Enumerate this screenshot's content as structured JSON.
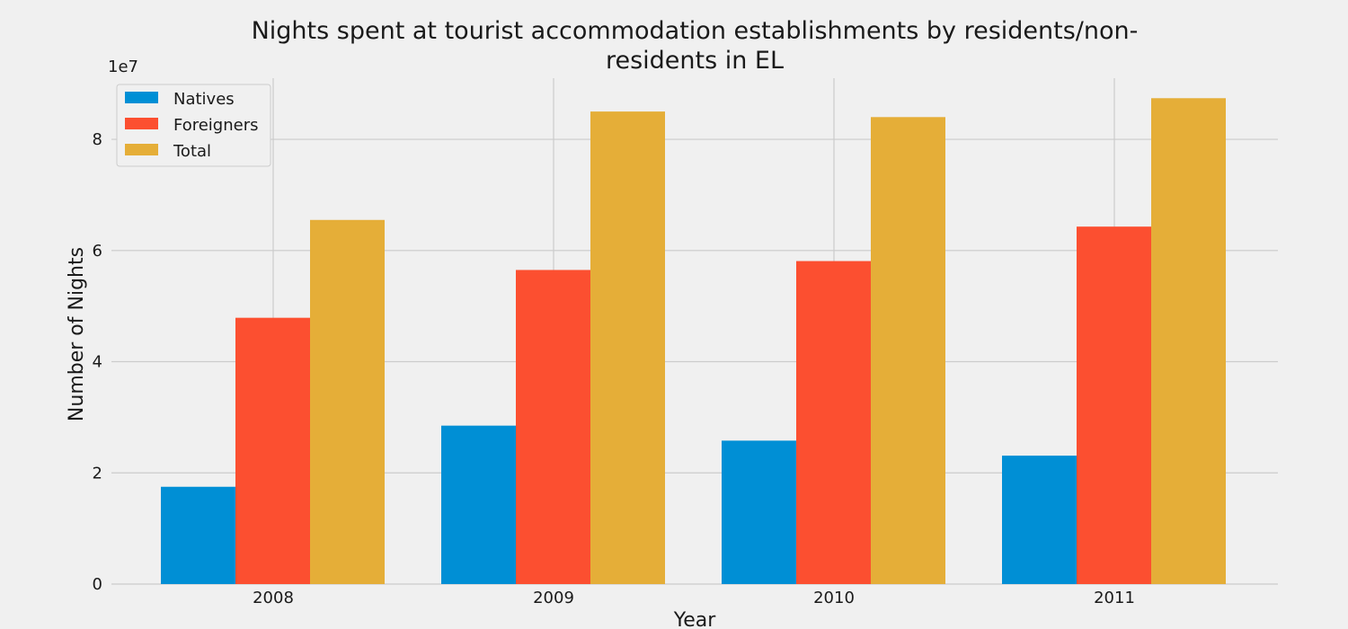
{
  "chart_data": {
    "type": "bar",
    "title": "Nights spent at tourist accommodation establishments by residents/non-residents in EL",
    "title_lines": [
      "Nights spent at tourist accommodation establishments by residents/non-",
      "residents in EL"
    ],
    "xlabel": "Year",
    "ylabel": "Number of Nights",
    "y_offset_label": "1e7",
    "categories": [
      "2008",
      "2009",
      "2010",
      "2011"
    ],
    "series": [
      {
        "name": "Natives",
        "color": "#008fd5",
        "values": [
          17500000,
          28500000,
          25800000,
          23100000
        ]
      },
      {
        "name": "Foreigners",
        "color": "#fc4f30",
        "values": [
          47900000,
          56500000,
          58100000,
          64300000
        ]
      },
      {
        "name": "Total",
        "color": "#e5ae38",
        "values": [
          65500000,
          85000000,
          84000000,
          87400000
        ]
      }
    ],
    "ylim": [
      0,
      91000000
    ],
    "yticks": [
      {
        "value": 0,
        "label": "0"
      },
      {
        "value": 20000000,
        "label": "2"
      },
      {
        "value": 40000000,
        "label": "4"
      },
      {
        "value": 60000000,
        "label": "6"
      },
      {
        "value": 80000000,
        "label": "8"
      }
    ],
    "grid": true,
    "legend_position": "top-left"
  }
}
